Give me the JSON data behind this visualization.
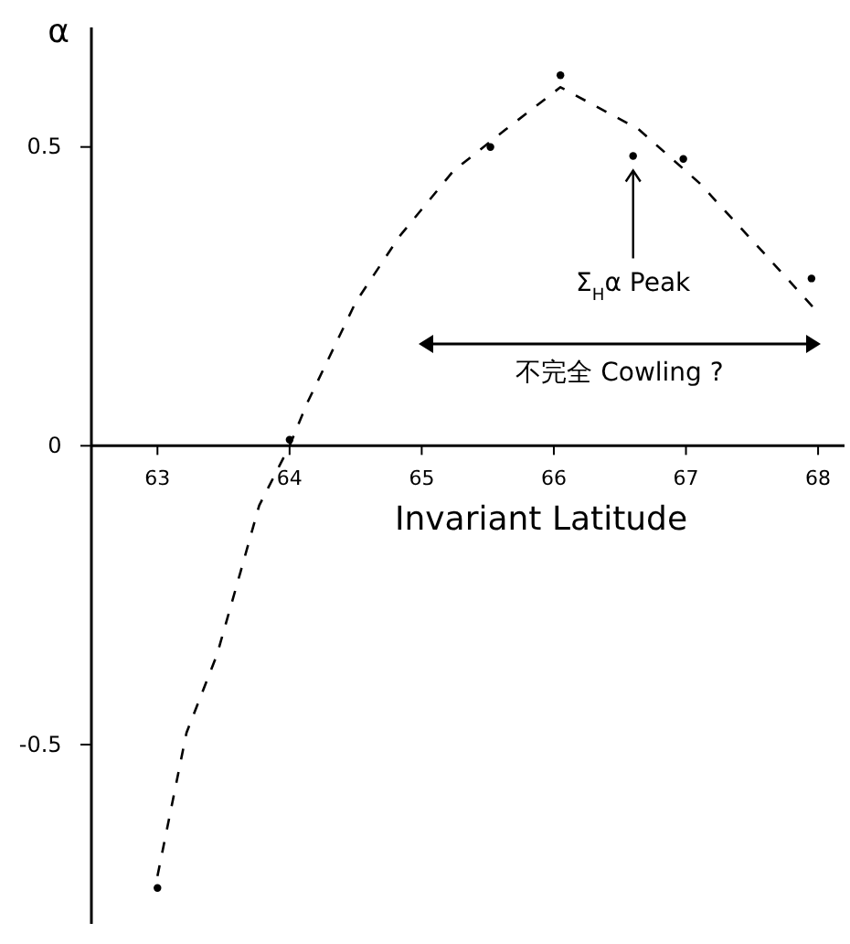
{
  "chart_data": {
    "type": "scatter",
    "xlabel": "Invariant Latitude",
    "ylabel": "α",
    "xlim": [
      62.5,
      68.2
    ],
    "ylim": [
      -0.8,
      0.7
    ],
    "xticks": [
      63,
      64,
      65,
      66,
      67,
      68
    ],
    "yticks": [
      {
        "value": -0.5,
        "label": "-0.5"
      },
      0,
      {
        "value": 0.5,
        "label": "0.5"
      }
    ],
    "grid": false,
    "series": [
      {
        "color": "#000000",
        "marker": "circle",
        "x": [
          63.0,
          64.0,
          65.52,
          66.05,
          66.6,
          66.98,
          67.95
        ],
        "values": [
          -0.74,
          0.01,
          0.5,
          0.62,
          0.485,
          0.48,
          0.28
        ]
      },
      {
        "type": "line",
        "color": "#000000",
        "marker": "none",
        "line_style": "dashed",
        "x": [
          63.0,
          63.22,
          63.45,
          63.63,
          63.77,
          64.0,
          64.13,
          64.5,
          64.83,
          65.24,
          65.64,
          66.05,
          66.64,
          67.1,
          67.6,
          67.97
        ],
        "values": [
          -0.72,
          -0.48,
          -0.35,
          -0.21,
          -0.1,
          0.0,
          0.07,
          0.24,
          0.35,
          0.46,
          0.53,
          0.6,
          0.53,
          0.44,
          0.32,
          0.23
        ]
      }
    ],
    "annotations": [
      {
        "text": "Σ$_{H}$α Peak",
        "x": 66.6,
        "y": 0.485
      },
      "不完全 Cowling ?"
    ]
  }
}
